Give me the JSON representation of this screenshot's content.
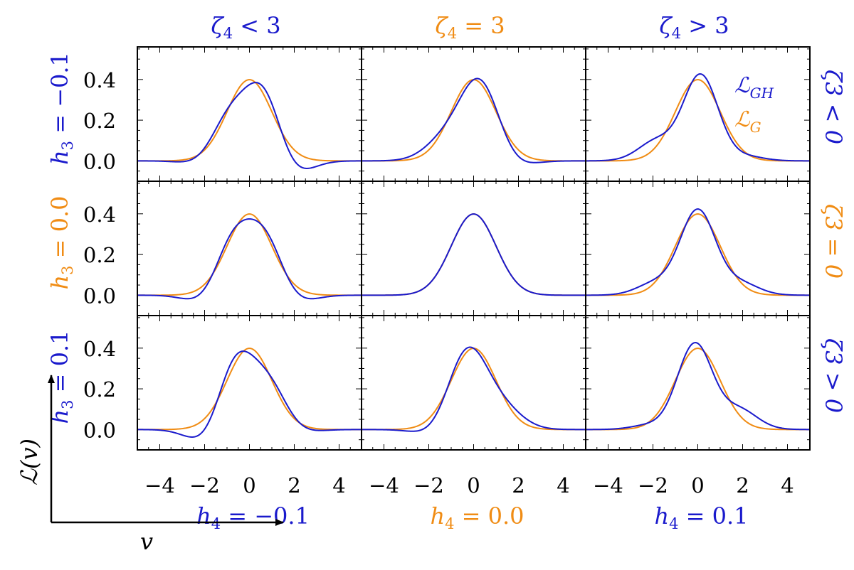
{
  "colors": {
    "gh": "#1a1acc",
    "g": "#f08c14",
    "axis": "#000000"
  },
  "chart_data": {
    "type": "line",
    "grid": false,
    "xlim": [
      -5,
      5
    ],
    "ylim": [
      -0.1,
      0.56
    ],
    "x_ticks": [
      -4,
      -2,
      0,
      2,
      4
    ],
    "x_tick_labels": [
      "−4",
      "−2",
      "0",
      "2",
      "4"
    ],
    "y_ticks": [
      0.0,
      0.2,
      0.4
    ],
    "y_tick_labels": [
      "0.0",
      "0.2",
      "0.4"
    ],
    "xlabel": "v",
    "ylabel": "ℒ(v)",
    "legend": {
      "position": "top-right",
      "entries": [
        {
          "key": "gh",
          "base": "ℒ",
          "sub": "GH"
        },
        {
          "key": "g",
          "base": "ℒ",
          "sub": "G"
        }
      ]
    },
    "col_titles": [
      {
        "zeta": "ζ",
        "sub": "4",
        "rel": " < 3",
        "color_key": "gh"
      },
      {
        "zeta": "ζ",
        "sub": "4",
        "rel": " = 3",
        "color_key": "g"
      },
      {
        "zeta": "ζ",
        "sub": "4",
        "rel": " > 3",
        "color_key": "gh"
      }
    ],
    "row_labels": [
      {
        "base": "h",
        "sub": "3",
        "rel": " = −0.1",
        "color_key": "gh"
      },
      {
        "base": "h",
        "sub": "3",
        "rel": " = 0.0",
        "color_key": "g"
      },
      {
        "base": "h",
        "sub": "3",
        "rel": " = 0.1",
        "color_key": "gh"
      }
    ],
    "right_labels": [
      {
        "text": "ζ3 < 0",
        "color_key": "gh"
      },
      {
        "text": "ζ3 = 0",
        "color_key": "g"
      },
      {
        "text": "ζ3 > 0",
        "color_key": "gh"
      }
    ],
    "bottom_labels": [
      {
        "base": "h",
        "sub": "4",
        "rel": " = −0.1",
        "color_key": "gh"
      },
      {
        "base": "h",
        "sub": "4",
        "rel": " = 0.0",
        "color_key": "g"
      },
      {
        "base": "h",
        "sub": "4",
        "rel": " = 0.1",
        "color_key": "gh"
      }
    ],
    "h3_values": [
      -0.1,
      0.0,
      0.1
    ],
    "h4_values": [
      -0.1,
      0.0,
      0.1
    ],
    "series_model": "Gaussian N(0,1) vs Gauss-Hermite with h3 (row) and h4 (column)",
    "series": [
      {
        "name": "ℒG",
        "color_key": "g",
        "x_range": [
          -5,
          5
        ],
        "peak": 0.399
      },
      {
        "name": "ℒGH",
        "color_key": "gh",
        "x_range": [
          -5,
          5
        ]
      }
    ]
  }
}
